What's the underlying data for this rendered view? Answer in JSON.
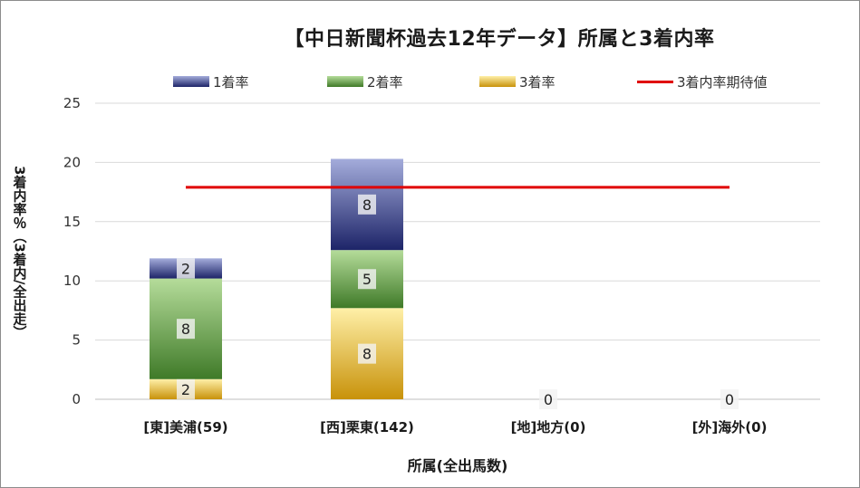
{
  "chart_data": {
    "type": "bar",
    "stacked": true,
    "title": "【中日新聞杯過去12年データ】所属と3着内率",
    "xlabel": "所属(全出馬数)",
    "ylabel": "3着内率％（3着内/全出走）",
    "ylim": [
      0,
      25
    ],
    "yticks": [
      0,
      5,
      10,
      15,
      20,
      25
    ],
    "grid": true,
    "legend_position": "top",
    "categories": [
      "[東]美浦(59)",
      "[西]栗東(142)",
      "[地]地方(0)",
      "[外]海外(0)"
    ],
    "series": [
      {
        "name": "3着率",
        "values": [
          1.7,
          7.7,
          0,
          0
        ],
        "labels": [
          "2",
          "8",
          "",
          ""
        ],
        "colors": [
          "#fff0a8",
          "#c8920a"
        ]
      },
      {
        "name": "2着率",
        "values": [
          8.5,
          4.9,
          0,
          0
        ],
        "labels": [
          "8",
          "5",
          "",
          ""
        ],
        "colors": [
          "#b5dc9a",
          "#3f7a28"
        ]
      },
      {
        "name": "1着率",
        "values": [
          1.7,
          7.7,
          0,
          0
        ],
        "labels": [
          "2",
          "8",
          "",
          ""
        ],
        "colors": [
          "#a4acdb",
          "#1d2468"
        ]
      }
    ],
    "total_labels": [
      "",
      "",
      "0",
      "0"
    ],
    "reference_line": {
      "name": "3着内率期待値",
      "value": 17.9,
      "color": "#e00000"
    }
  }
}
